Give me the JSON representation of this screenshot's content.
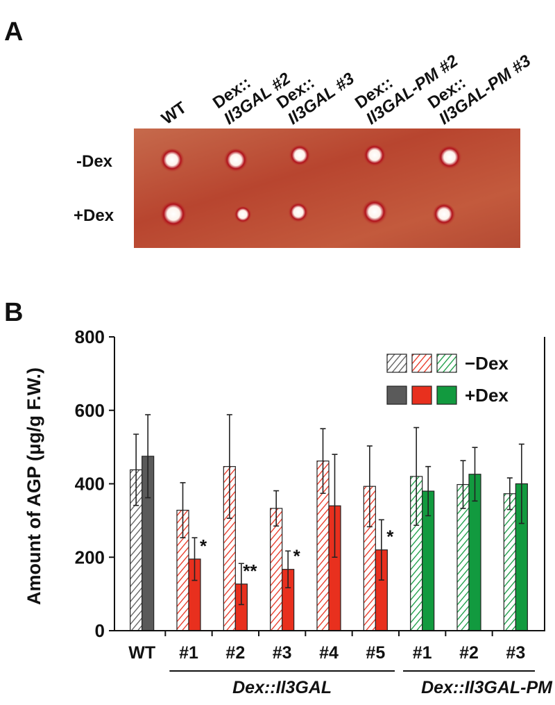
{
  "panel_a": {
    "label": "A",
    "columns": [
      [
        "WT"
      ],
      [
        "Dex::",
        "Il3GAL #2"
      ],
      [
        "Dex::",
        "Il3GAL #3"
      ],
      [
        "Dex::",
        "Il3GAL-PM #2"
      ],
      [
        "Dex::",
        "Il3GAL-PM #3"
      ]
    ],
    "rows": [
      "-Dex",
      "+Dex"
    ]
  },
  "chart_data": {
    "type": "bar",
    "panel_label": "B",
    "ylabel": "Amount of AGP (μg/g F.W.)",
    "categories": [
      "WT",
      "#1",
      "#2",
      "#3",
      "#4",
      "#5",
      "#1",
      "#2",
      "#3"
    ],
    "groups": [
      {
        "label": null,
        "count": 1
      },
      {
        "label": "Dex::Il3GAL",
        "count": 5
      },
      {
        "label": "Dex::Il3GAL-PM",
        "count": 3
      }
    ],
    "colors": [
      "#5a5a5a",
      "#e8301e",
      "#e8301e",
      "#e8301e",
      "#e8301e",
      "#e8301e",
      "#129a3f",
      "#129a3f",
      "#129a3f"
    ],
    "series": [
      {
        "name": "−Dex",
        "pattern": "hatch",
        "values": [
          438,
          328,
          447,
          333,
          462,
          393,
          420,
          398,
          373
        ],
        "errors": [
          97,
          75,
          141,
          48,
          88,
          110,
          133,
          65,
          43
        ]
      },
      {
        "name": "+Dex",
        "pattern": "solid",
        "values": [
          475,
          195,
          127,
          167,
          340,
          220,
          380,
          426,
          400
        ],
        "errors": [
          113,
          58,
          56,
          50,
          140,
          82,
          67,
          73,
          108
        ]
      }
    ],
    "significance": [
      null,
      "*",
      "**",
      "*",
      null,
      "*",
      null,
      null,
      null
    ],
    "ylim": [
      0,
      800
    ],
    "yticks": [
      0,
      200,
      400,
      600,
      800
    ],
    "grid": false
  }
}
